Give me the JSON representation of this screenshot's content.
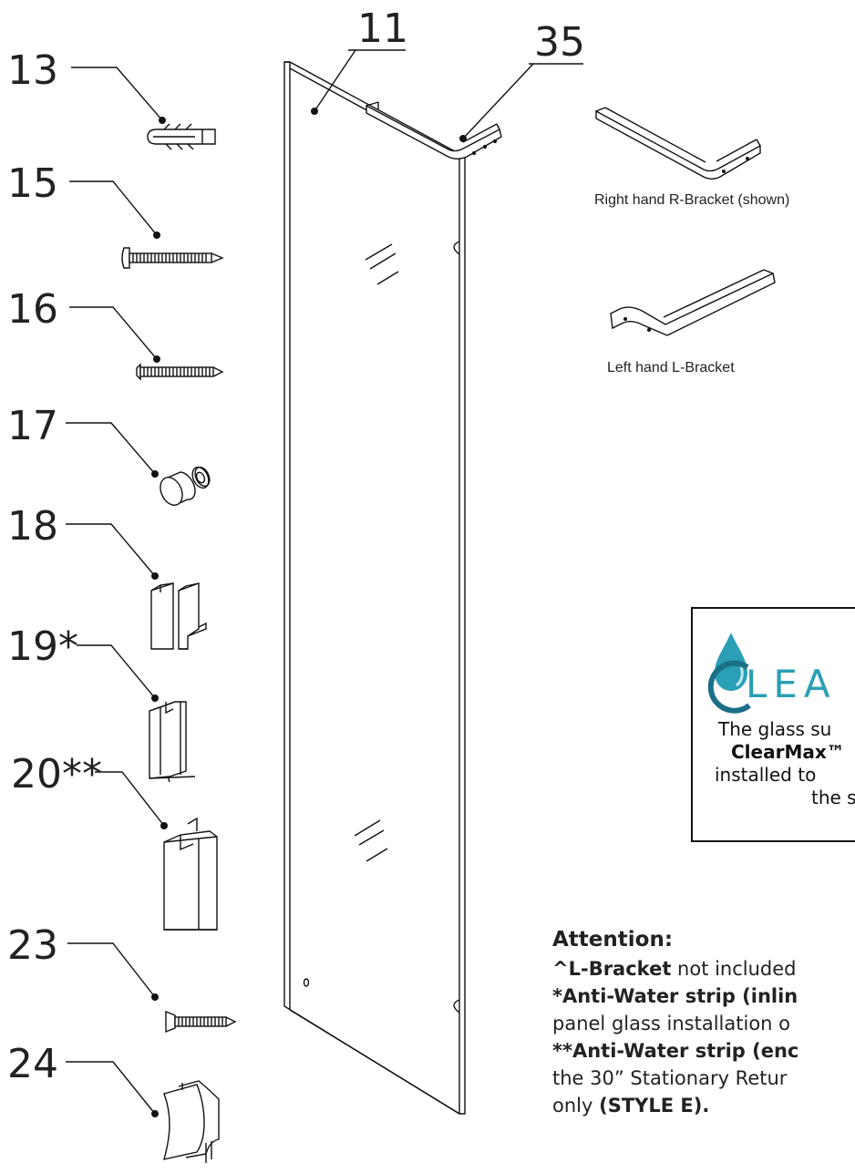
{
  "callouts": {
    "c11": "11",
    "c35": "35",
    "c13": "13",
    "c15": "15",
    "c16": "16",
    "c17": "17",
    "c18": "18",
    "c19": "19*",
    "c20": "20**",
    "c23": "23",
    "c24": "24"
  },
  "brackets": {
    "right_caption": "Right hand R-Bracket (shown)",
    "left_caption": "Left hand L-Bracket"
  },
  "notice_box": {
    "logo_text": "LEA",
    "line1": "The glass su",
    "line2": "ClearMax™",
    "line3": "installed to",
    "line4": "the s"
  },
  "attention": {
    "heading": "Attention:",
    "line1_bold": "^L-Bracket",
    "line1_rest": " not included",
    "line2_bold": "*Anti-Water strip (inlin",
    "line3": "panel glass installation o",
    "line4_bold": "**Anti-Water strip (enc",
    "line5": "the 30” Stationary Retur",
    "line6_text": "only ",
    "line6_bold": "(STYLE E)."
  },
  "colors": {
    "line": "#111111",
    "logo_teal": "#2a9fb5",
    "logo_dark": "#1b6f86"
  }
}
